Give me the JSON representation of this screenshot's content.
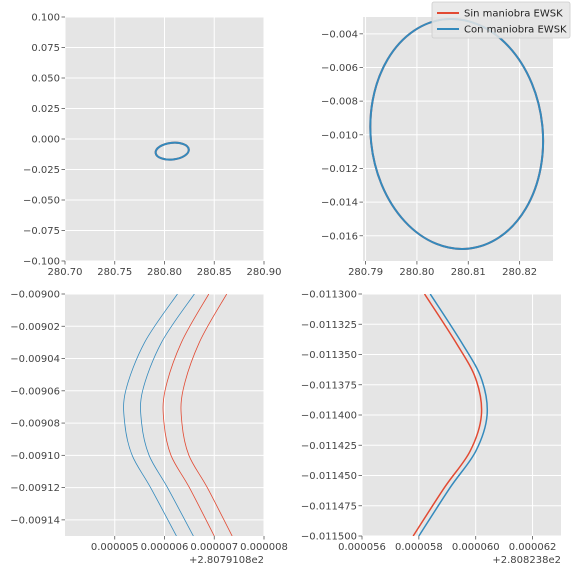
{
  "colors": {
    "series_0": "#e24a33",
    "series_1": "#348abd",
    "panel_bg": "#e5e5e5",
    "grid": "#ffffff",
    "tick_text": "#444444"
  },
  "legend": {
    "placement": "top-right",
    "entries": [
      "Sin maniobra EWSK",
      "Con maniobra EWSK"
    ]
  },
  "chart_data": [
    {
      "type": "line",
      "panel": "top-left",
      "title": "",
      "xlabel": "",
      "ylabel": "",
      "xlim": [
        280.7,
        280.9
      ],
      "ylim": [
        -0.1,
        0.1
      ],
      "xticks": [
        280.7,
        280.75,
        280.8,
        280.85,
        280.9
      ],
      "xtick_labels": [
        "280.70",
        "280.75",
        "280.80",
        "280.85",
        "280.90"
      ],
      "yticks": [
        -0.1,
        -0.075,
        -0.05,
        -0.025,
        0.0,
        0.025,
        0.05,
        0.075,
        0.1
      ],
      "ytick_labels": [
        "−0.100",
        "−0.075",
        "−0.050",
        "−0.025",
        "0.000",
        "0.025",
        "0.050",
        "0.075",
        "0.100"
      ],
      "offset_label": "",
      "grid": true,
      "series": [
        {
          "name": "Sin maniobra EWSK",
          "shape": "ellipse",
          "x_range": [
            280.791,
            280.8245
          ],
          "y_range": [
            -0.0168,
            -0.0031
          ]
        },
        {
          "name": "Con maniobra EWSK",
          "shape": "ellipse",
          "x_range": [
            280.791,
            280.8245
          ],
          "y_range": [
            -0.0168,
            -0.0031
          ]
        }
      ]
    },
    {
      "type": "line",
      "panel": "top-right",
      "title": "",
      "xlabel": "",
      "ylabel": "",
      "xlim": [
        280.7895,
        280.8265
      ],
      "ylim": [
        -0.0175,
        -0.003
      ],
      "xticks": [
        280.79,
        280.8,
        280.81,
        280.82
      ],
      "xtick_labels": [
        "280.79",
        "280.80",
        "280.81",
        "280.82"
      ],
      "yticks": [
        -0.016,
        -0.014,
        -0.012,
        -0.01,
        -0.008,
        -0.006,
        -0.004
      ],
      "ytick_labels": [
        "−0.016",
        "−0.014",
        "−0.012",
        "−0.010",
        "−0.008",
        "−0.006",
        "−0.004"
      ],
      "offset_label": "",
      "grid": true,
      "series": [
        {
          "name": "Sin maniobra EWSK",
          "shape": "ellipse",
          "x_range": [
            280.791,
            280.8245
          ],
          "y_range": [
            -0.0168,
            -0.0031
          ]
        },
        {
          "name": "Con maniobra EWSK",
          "shape": "ellipse",
          "x_range": [
            280.791,
            280.8245
          ],
          "y_range": [
            -0.0168,
            -0.0031
          ]
        }
      ]
    },
    {
      "type": "line",
      "panel": "bottom-left",
      "title": "",
      "xlabel": "",
      "ylabel": "",
      "x_offset": 280.79108,
      "xlim": [
        4e-06,
        8e-06
      ],
      "ylim": [
        -0.00915,
        -0.009
      ],
      "xticks": [
        5e-06,
        6e-06,
        7e-06,
        8e-06
      ],
      "xtick_labels": [
        "0.000005",
        "0.000006",
        "0.000007",
        "0.000008"
      ],
      "yticks": [
        -0.00914,
        -0.00912,
        -0.0091,
        -0.00908,
        -0.00906,
        -0.00904,
        -0.00902,
        -0.009
      ],
      "ytick_labels": [
        "−0.00914",
        "−0.00912",
        "−0.00910",
        "−0.00908",
        "−0.00906",
        "−0.00904",
        "−0.00902",
        "−0.00900"
      ],
      "offset_label": "+2.8079108e2",
      "grid": true,
      "series": [
        {
          "name": "Con maniobra EWSK",
          "lines": [
            {
              "x": [
                6.26e-06,
                5.6e-06,
                5.22e-06,
                5.2e-06,
                5.35e-06,
                5.72e-06,
                6.24e-06
              ],
              "y": [
                -0.009,
                -0.00903,
                -0.00906,
                -0.00908,
                -0.0091,
                -0.00912,
                -0.00915
              ]
            },
            {
              "x": [
                6.6e-06,
                5.94e-06,
                5.56e-06,
                5.54e-06,
                5.69e-06,
                6.06e-06,
                6.58e-06
              ],
              "y": [
                -0.009,
                -0.00903,
                -0.00906,
                -0.00908,
                -0.0091,
                -0.00912,
                -0.00915
              ]
            }
          ]
        },
        {
          "name": "Sin maniobra EWSK",
          "lines": [
            {
              "x": [
                6.89e-06,
                6.34e-06,
                6.01e-06,
                5.99e-06,
                6.13e-06,
                6.5e-06,
                7e-06
              ],
              "y": [
                -0.009,
                -0.00903,
                -0.00906,
                -0.00908,
                -0.0091,
                -0.00912,
                -0.00915
              ]
            },
            {
              "x": [
                7.25e-06,
                6.7e-06,
                6.37e-06,
                6.35e-06,
                6.49e-06,
                6.86e-06,
                7.36e-06
              ],
              "y": [
                -0.009,
                -0.00903,
                -0.00906,
                -0.00908,
                -0.0091,
                -0.00912,
                -0.00915
              ]
            }
          ]
        }
      ]
    },
    {
      "type": "line",
      "panel": "bottom-right",
      "title": "",
      "xlabel": "",
      "ylabel": "",
      "x_offset": 280.8238,
      "xlim": [
        5.6e-05,
        6.3e-05
      ],
      "ylim": [
        -0.0115,
        -0.0113
      ],
      "xticks": [
        5.6e-05,
        5.8e-05,
        6e-05,
        6.2e-05
      ],
      "xtick_labels": [
        "0.000056",
        "0.000058",
        "0.000060",
        "0.000062"
      ],
      "yticks": [
        -0.0115,
        -0.011475,
        -0.01145,
        -0.011425,
        -0.0114,
        -0.011375,
        -0.01135,
        -0.011325,
        -0.0113
      ],
      "ytick_labels": [
        "−0.011500",
        "−0.011475",
        "−0.011450",
        "−0.011425",
        "−0.011400",
        "−0.011375",
        "−0.011350",
        "−0.011325",
        "−0.011300"
      ],
      "offset_label": "+2.808238e2",
      "grid": true,
      "series": [
        {
          "name": "Con maniobra EWSK",
          "lines": [
            {
              "x": [
                5.84e-05,
                5.95e-05,
                6.02e-05,
                6.04e-05,
                6e-05,
                5.91e-05,
                5.8e-05
              ],
              "y": [
                -0.0113,
                -0.01134,
                -0.01137,
                -0.0114,
                -0.01143,
                -0.01146,
                -0.0115
              ]
            }
          ]
        },
        {
          "name": "Sin maniobra EWSK",
          "lines": [
            {
              "x": [
                5.82e-05,
                5.93e-05,
                6e-05,
                6.02e-05,
                5.98e-05,
                5.89e-05,
                5.78e-05
              ],
              "y": [
                -0.0113,
                -0.01134,
                -0.01137,
                -0.0114,
                -0.01143,
                -0.01146,
                -0.0115
              ]
            }
          ]
        }
      ]
    }
  ]
}
